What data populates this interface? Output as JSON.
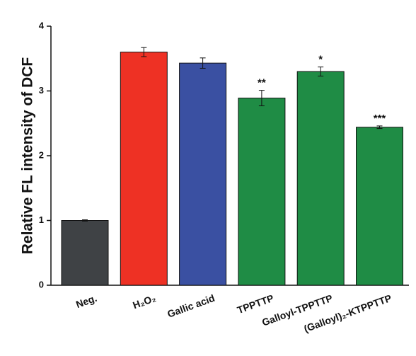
{
  "chart_data": {
    "type": "bar",
    "y_label": "Relative FL intensity of DCF",
    "categories": [
      "Neg.",
      "H₂O₂",
      "Gallic acid",
      "TPPTTP",
      "Galloyl-TPPTTP",
      "(Galloyl)₂-KTPPTTP"
    ],
    "values": [
      1.0,
      3.6,
      3.43,
      2.89,
      3.3,
      2.44
    ],
    "errors": [
      0.01,
      0.07,
      0.08,
      0.12,
      0.07,
      0.02
    ],
    "significance": [
      null,
      null,
      null,
      "**",
      "*",
      "***"
    ],
    "colors": [
      "#3f4245",
      "#ee3124",
      "#3a50a2",
      "#1f8c45",
      "#1f8c45",
      "#1f8c45"
    ],
    "ylim": [
      0,
      4
    ],
    "yticks": [
      0,
      1,
      2,
      3,
      4
    ],
    "grid": false
  }
}
